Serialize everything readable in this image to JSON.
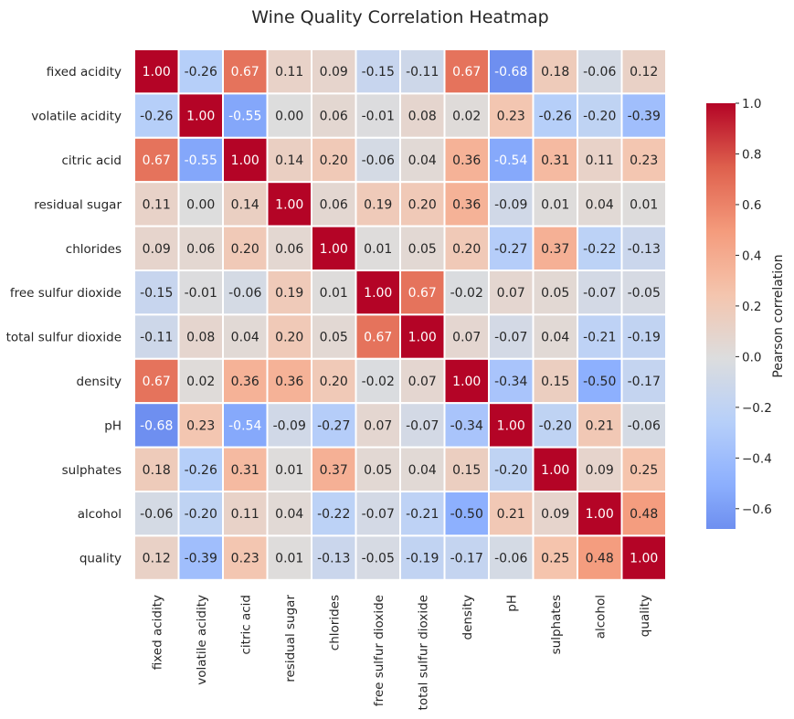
{
  "chart_data": {
    "type": "heatmap",
    "title": "Wine Quality Correlation Heatmap",
    "row_labels": [
      "fixed acidity",
      "volatile acidity",
      "citric acid",
      "residual sugar",
      "chlorides",
      "free sulfur dioxide",
      "total sulfur dioxide",
      "density",
      "pH",
      "sulphates",
      "alcohol",
      "quality"
    ],
    "col_labels": [
      "fixed acidity",
      "volatile acidity",
      "citric acid",
      "residual sugar",
      "chlorides",
      "free sulfur dioxide",
      "total sulfur dioxide",
      "density",
      "pH",
      "sulphates",
      "alcohol",
      "quality"
    ],
    "values": [
      [
        1.0,
        -0.26,
        0.67,
        0.11,
        0.09,
        -0.15,
        -0.11,
        0.67,
        -0.68,
        0.18,
        -0.06,
        0.12
      ],
      [
        -0.26,
        1.0,
        -0.55,
        0.0,
        0.06,
        -0.01,
        0.08,
        0.02,
        0.23,
        -0.26,
        -0.2,
        -0.39
      ],
      [
        0.67,
        -0.55,
        1.0,
        0.14,
        0.2,
        -0.06,
        0.04,
        0.36,
        -0.54,
        0.31,
        0.11,
        0.23
      ],
      [
        0.11,
        0.0,
        0.14,
        1.0,
        0.06,
        0.19,
        0.2,
        0.36,
        -0.09,
        0.01,
        0.04,
        0.01
      ],
      [
        0.09,
        0.06,
        0.2,
        0.06,
        1.0,
        0.01,
        0.05,
        0.2,
        -0.27,
        0.37,
        -0.22,
        -0.13
      ],
      [
        -0.15,
        -0.01,
        -0.06,
        0.19,
        0.01,
        1.0,
        0.67,
        -0.02,
        0.07,
        0.05,
        -0.07,
        -0.05
      ],
      [
        -0.11,
        0.08,
        0.04,
        0.2,
        0.05,
        0.67,
        1.0,
        0.07,
        -0.07,
        0.04,
        -0.21,
        -0.19
      ],
      [
        0.67,
        0.02,
        0.36,
        0.36,
        0.2,
        -0.02,
        0.07,
        1.0,
        -0.34,
        0.15,
        -0.5,
        -0.17
      ],
      [
        -0.68,
        0.23,
        -0.54,
        -0.09,
        -0.27,
        0.07,
        -0.07,
        -0.34,
        1.0,
        -0.2,
        0.21,
        -0.06
      ],
      [
        0.18,
        -0.26,
        0.31,
        0.01,
        0.37,
        0.05,
        0.04,
        0.15,
        -0.2,
        1.0,
        0.09,
        0.25
      ],
      [
        -0.06,
        -0.2,
        0.11,
        0.04,
        -0.22,
        -0.07,
        -0.21,
        -0.5,
        0.21,
        0.09,
        1.0,
        0.48
      ],
      [
        0.12,
        -0.39,
        0.23,
        0.01,
        -0.13,
        -0.05,
        -0.19,
        -0.17,
        -0.06,
        0.25,
        0.48,
        1.0
      ]
    ],
    "colormap": "coolwarm",
    "center": 0,
    "color_range": [
      -1,
      1
    ],
    "colorbar": {
      "label": "Pearson correlation",
      "range": [
        -0.68,
        1.0
      ],
      "ticks": [
        "-0.6",
        "-0.4",
        "-0.2",
        "0.0",
        "0.2",
        "0.4",
        "0.6",
        "0.8",
        "1.0"
      ],
      "position": "right"
    },
    "annotation_format": "0.00"
  }
}
